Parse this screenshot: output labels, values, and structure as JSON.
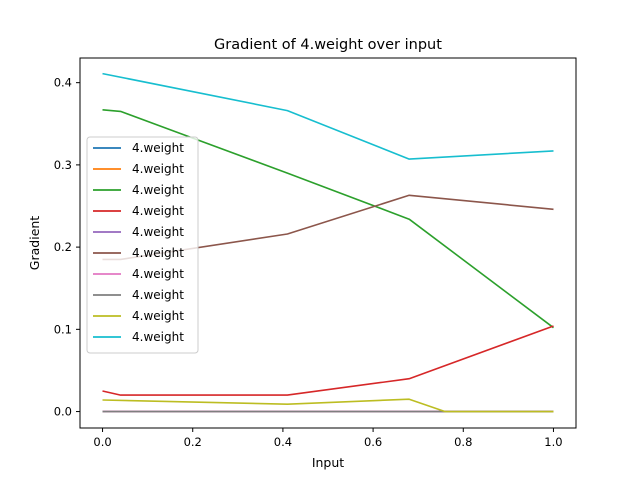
{
  "chart_data": {
    "type": "line",
    "title": "Gradient of 4.weight over input",
    "xlabel": "Input",
    "ylabel": "Gradient",
    "xlim": [
      -0.05,
      1.05
    ],
    "ylim": [
      -0.02,
      0.43
    ],
    "xticks": [
      0.0,
      0.2,
      0.4,
      0.6,
      0.8,
      1.0
    ],
    "xtick_labels": [
      "0.0",
      "0.2",
      "0.4",
      "0.6",
      "0.8",
      "1.0"
    ],
    "yticks": [
      0.0,
      0.1,
      0.2,
      0.3,
      0.4
    ],
    "ytick_labels": [
      "0.0",
      "0.1",
      "0.2",
      "0.3",
      "0.4"
    ],
    "grid": false,
    "legend_position": "center-left",
    "series": [
      {
        "name": "4.weight",
        "color": "#1f77b4",
        "x": [
          0.0,
          0.03,
          0.41,
          0.68,
          1.0
        ],
        "y": [
          0.0,
          0.0,
          0.0,
          0.0,
          0.0
        ]
      },
      {
        "name": "4.weight",
        "color": "#ff7f0e",
        "x": [
          0.0,
          0.03,
          0.41,
          0.68,
          1.0
        ],
        "y": [
          0.0,
          0.0,
          0.0,
          0.0,
          0.0
        ]
      },
      {
        "name": "4.weight",
        "color": "#2ca02c",
        "x": [
          0.0,
          0.04,
          0.41,
          0.68,
          1.0
        ],
        "y": [
          0.367,
          0.365,
          0.29,
          0.234,
          0.102
        ]
      },
      {
        "name": "4.weight",
        "color": "#d62728",
        "x": [
          0.0,
          0.04,
          0.41,
          0.68,
          1.0
        ],
        "y": [
          0.025,
          0.02,
          0.02,
          0.04,
          0.104
        ]
      },
      {
        "name": "4.weight",
        "color": "#9467bd",
        "x": [
          0.0,
          0.03,
          0.41,
          0.68,
          1.0
        ],
        "y": [
          0.0,
          0.0,
          0.0,
          0.0,
          0.0
        ]
      },
      {
        "name": "4.weight",
        "color": "#8c564b",
        "x": [
          0.0,
          0.04,
          0.41,
          0.68,
          1.0
        ],
        "y": [
          0.185,
          0.185,
          0.216,
          0.263,
          0.246
        ]
      },
      {
        "name": "4.weight",
        "color": "#e377c2",
        "x": [
          0.0,
          0.03,
          0.41,
          0.68,
          1.0
        ],
        "y": [
          0.0,
          0.0,
          0.0,
          0.0,
          0.0
        ]
      },
      {
        "name": "4.weight",
        "color": "#7f7f7f",
        "x": [
          0.0,
          0.03,
          0.41,
          0.68,
          1.0
        ],
        "y": [
          0.0,
          0.0,
          0.0,
          0.0,
          0.0
        ]
      },
      {
        "name": "4.weight",
        "color": "#bcbd22",
        "x": [
          0.0,
          0.41,
          0.68,
          0.76,
          1.0
        ],
        "y": [
          0.014,
          0.009,
          0.015,
          0.0,
          0.0
        ]
      },
      {
        "name": "4.weight",
        "color": "#17becf",
        "x": [
          0.0,
          0.41,
          0.68,
          1.0
        ],
        "y": [
          0.411,
          0.366,
          0.307,
          0.317
        ]
      }
    ]
  }
}
